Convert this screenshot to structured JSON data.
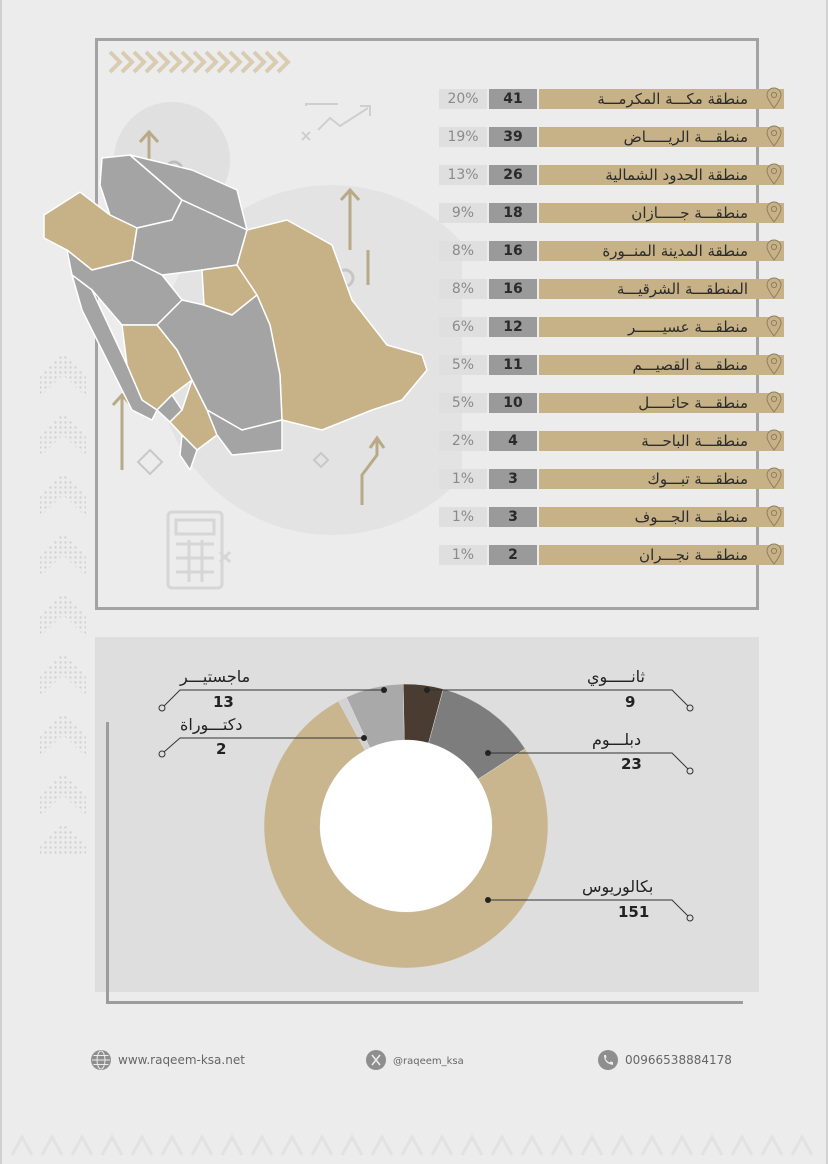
{
  "regions": [
    {
      "name": "منطقة مكـــة المكرمـــة",
      "count": "41",
      "percent": "20%"
    },
    {
      "name": "منطقـــة الريـــــاض",
      "count": "39",
      "percent": "19%"
    },
    {
      "name": "منطقة الحدود الشمالية",
      "count": "26",
      "percent": "13%"
    },
    {
      "name": "منطقـــة جـــــازان",
      "count": "18",
      "percent": "9%"
    },
    {
      "name": "منطقة المدينة المنــورة",
      "count": "16",
      "percent": "8%"
    },
    {
      "name": "المنطقـــة الشرقيـــة",
      "count": "16",
      "percent": "8%"
    },
    {
      "name": "منطقـــة عسيــــــر",
      "count": "12",
      "percent": "6%"
    },
    {
      "name": "منطقـــة القصيـــم",
      "count": "11",
      "percent": "5%"
    },
    {
      "name": "منطقـــة حائـــــل",
      "count": "10",
      "percent": "5%"
    },
    {
      "name": "منطقـــة الباحـــة",
      "count": "4",
      "percent": "2%"
    },
    {
      "name": "منطقـــة تبـــوك",
      "count": "3",
      "percent": "1%"
    },
    {
      "name": "منطقـــة الجـــوف",
      "count": "3",
      "percent": "1%"
    },
    {
      "name": "منطقـــة نجـــران",
      "count": "2",
      "percent": "1%"
    }
  ],
  "education": {
    "secondary": {
      "label": "ثانـــــوي",
      "value": "9"
    },
    "diploma": {
      "label": "دبلـــوم",
      "value": "23"
    },
    "bachelor": {
      "label": "بكالوريوس",
      "value": "151"
    },
    "masters": {
      "label": "ماجستيـــر",
      "value": "13"
    },
    "doctorate": {
      "label": "دكتـــوراة",
      "value": "2"
    }
  },
  "chart_data": {
    "type": "pie",
    "categories": [
      "ثانوي",
      "دبلوم",
      "بكالوريوس",
      "دكتوراة",
      "ماجستير"
    ],
    "values": [
      9,
      23,
      151,
      2,
      13
    ],
    "colors": [
      "#4a3c30",
      "#7d7d7d",
      "#c9b68f",
      "#d2d2d2",
      "#a9a9a9"
    ]
  },
  "footer": {
    "website": "www.raqeem-ksa.net",
    "twitter": "@raqeem_ksa",
    "phone": "00966538884178"
  },
  "colors": {
    "gold": "#c7b187",
    "dark_gray": "#9a9a9a",
    "light_gray": "#dfdfdf",
    "background": "#ececec"
  }
}
